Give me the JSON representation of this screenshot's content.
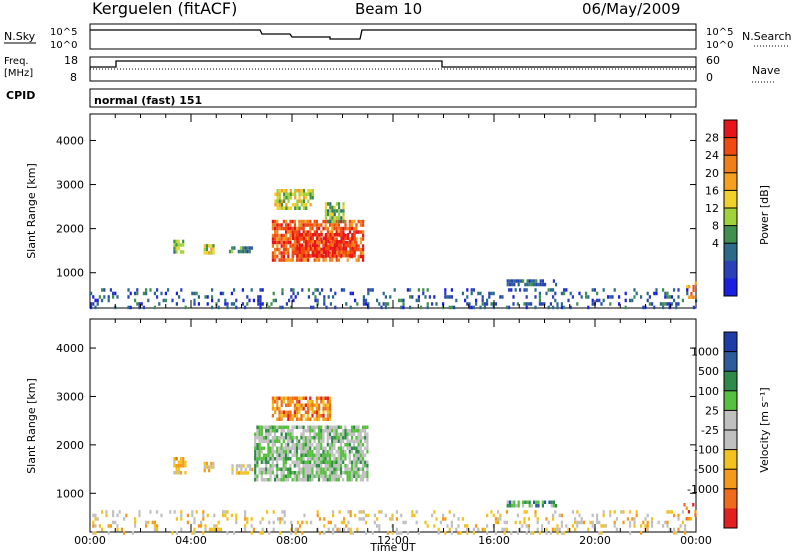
{
  "header": {
    "station": "Kerguelen (fitACF)",
    "beam": "Beam 10",
    "date": "06/May/2009"
  },
  "panels": {
    "nsky": {
      "left_label": "N.Sky",
      "right_label": "N.Search",
      "left_ticks": [
        "10^5",
        "10^0"
      ],
      "right_ticks": [
        "10^5",
        "10^0"
      ]
    },
    "freq": {
      "left_label": "Freq.",
      "left_unit": "[MHz]",
      "right_label": "Nave",
      "left_ticks": [
        "18",
        "8"
      ],
      "right_ticks": [
        "60",
        "0"
      ]
    },
    "cpid": {
      "label": "CPID",
      "value": "normal (fast) 151"
    }
  },
  "colorbars": {
    "power": {
      "label": "Power [dB]",
      "ticks": [
        "28",
        "24",
        "20",
        "16",
        "12",
        "8",
        "4"
      ],
      "colors": [
        "#e8141c",
        "#f04a10",
        "#f07f18",
        "#f5a020",
        "#f0d02a",
        "#a0d23c",
        "#3f8f4e",
        "#2c6a8a",
        "#2a40b8",
        "#1a20e0"
      ]
    },
    "velocity": {
      "label": "Velocity [m s⁻¹]",
      "ticks": [
        "1000",
        "500",
        "100",
        "25",
        "-25",
        "-100",
        "-500",
        "-1000"
      ],
      "colors": [
        "#1e3ca8",
        "#2c5c9c",
        "#2f8a4a",
        "#58c040",
        "#c0c0c0",
        "#c0c0c0",
        "#f2c21e",
        "#f39a1a",
        "#ef6a1a",
        "#e22020"
      ]
    }
  },
  "chart_data": [
    {
      "type": "heatmap",
      "name": "",
      "ylabel": "Slant Range [km]",
      "xlabel": "",
      "ylim": [
        200,
        4600
      ],
      "xlim": [
        0,
        24
      ],
      "y_ticks": [
        "1000",
        "2000",
        "3000",
        "4000"
      ],
      "regions": [
        {
          "t0": 3.3,
          "t1": 3.7,
          "r0": 1450,
          "r1": 1750,
          "level": 6
        },
        {
          "t0": 4.5,
          "t1": 4.9,
          "r0": 1450,
          "r1": 1650,
          "level": 5
        },
        {
          "t0": 5.5,
          "t1": 6.4,
          "r0": 1450,
          "r1": 1600,
          "level": 7
        },
        {
          "t0": 7.2,
          "t1": 10.8,
          "r0": 1300,
          "r1": 2200,
          "level": 2
        },
        {
          "t0": 8.0,
          "t1": 10.5,
          "r0": 1400,
          "r1": 1900,
          "level": 1
        },
        {
          "t0": 7.3,
          "t1": 8.8,
          "r0": 2500,
          "r1": 2900,
          "level": 5
        },
        {
          "t0": 9.3,
          "t1": 10.0,
          "r0": 2200,
          "r1": 2600,
          "level": 6
        },
        {
          "t0": 16.5,
          "t1": 18.5,
          "r0": 750,
          "r1": 850,
          "level": 8
        },
        {
          "t0": 23.6,
          "t1": 24.0,
          "r0": 400,
          "r1": 800,
          "level": 3
        },
        {
          "t0": 0.0,
          "t1": 24.0,
          "r0": 200,
          "r1": 650,
          "level": 8
        }
      ]
    },
    {
      "type": "heatmap",
      "name": "",
      "ylabel": "Slant Range [km]",
      "xlabel": "Time UT",
      "ylim": [
        200,
        4600
      ],
      "xlim": [
        0,
        24
      ],
      "y_ticks": [
        "1000",
        "2000",
        "3000",
        "4000"
      ],
      "x_ticks": [
        "00:00",
        "04:00",
        "08:00",
        "12:00",
        "16:00",
        "20:00",
        "00:00"
      ],
      "regions": [
        {
          "t0": 3.3,
          "t1": 3.8,
          "r0": 1450,
          "r1": 1750,
          "level": 7
        },
        {
          "t0": 4.5,
          "t1": 4.9,
          "r0": 1450,
          "r1": 1650,
          "level": 6
        },
        {
          "t0": 5.6,
          "t1": 6.4,
          "r0": 1450,
          "r1": 1600,
          "level": 6
        },
        {
          "t0": 6.5,
          "t1": 11.0,
          "r0": 1300,
          "r1": 2400,
          "level": 4
        },
        {
          "t0": 7.2,
          "t1": 9.5,
          "r0": 2500,
          "r1": 3000,
          "level": 8
        },
        {
          "t0": 16.5,
          "t1": 18.5,
          "r0": 750,
          "r1": 850,
          "level": 3
        },
        {
          "t0": 23.5,
          "t1": 24.0,
          "r0": 500,
          "r1": 800,
          "level": 8
        },
        {
          "t0": 0.0,
          "t1": 24.0,
          "r0": 200,
          "r1": 650,
          "level": 6
        }
      ]
    }
  ]
}
